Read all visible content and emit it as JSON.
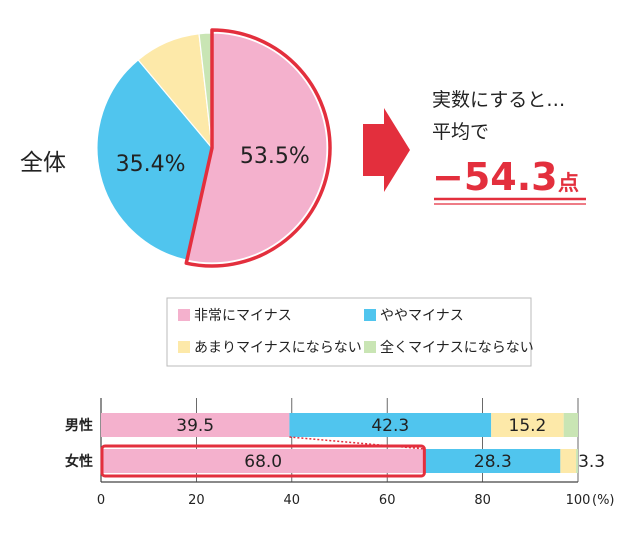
{
  "colors": {
    "pink": "#f4b1cd",
    "blue": "#50c5ee",
    "yellow": "#fde9a9",
    "green": "#c9e5b4",
    "red": "#e32f3d"
  },
  "summary": {
    "group_label": "全体",
    "line1": "実数にすると…",
    "line2": "平均で",
    "value": "−54.3",
    "unit": "点"
  },
  "legend": [
    {
      "label": "非常にマイナス",
      "color": "#f4b1cd"
    },
    {
      "label": "ややマイナス",
      "color": "#50c5ee"
    },
    {
      "label": "あまりマイナスにならない",
      "color": "#fde9a9"
    },
    {
      "label": "全くマイナスにならない",
      "color": "#c9e5b4"
    }
  ],
  "chart_data": [
    {
      "type": "pie",
      "categories": [
        "非常にマイナス",
        "ややマイナス",
        "あまりマイナスにならない",
        "全くマイナスにならない"
      ],
      "values": [
        53.5,
        35.4,
        9.3,
        1.8
      ],
      "labels": [
        "53.5%",
        "35.4%",
        "",
        ""
      ],
      "highlighted_slice": "非常にマイナス"
    },
    {
      "type": "bar",
      "orientation": "horizontal",
      "stacked": true,
      "categories": [
        "男性",
        "女性"
      ],
      "series": [
        {
          "name": "非常にマイナス",
          "values": [
            39.5,
            68.0
          ],
          "labels": [
            "39.5",
            "68.0"
          ]
        },
        {
          "name": "ややマイナス",
          "values": [
            42.3,
            28.3
          ],
          "labels": [
            "42.3",
            "28.3"
          ]
        },
        {
          "name": "あまりマイナスにならない",
          "values": [
            15.2,
            3.3
          ],
          "labels": [
            "15.2",
            "3.3"
          ]
        },
        {
          "name": "全くマイナスにならない",
          "values": [
            3.0,
            0.4
          ],
          "labels": [
            "",
            ""
          ]
        }
      ],
      "xlim": [
        0,
        100
      ],
      "xticks": [
        "0",
        "20",
        "40",
        "60",
        "80",
        "100"
      ],
      "unit_label": "(%)",
      "grid": true,
      "highlighted": "女性 非常にマイナス"
    }
  ]
}
